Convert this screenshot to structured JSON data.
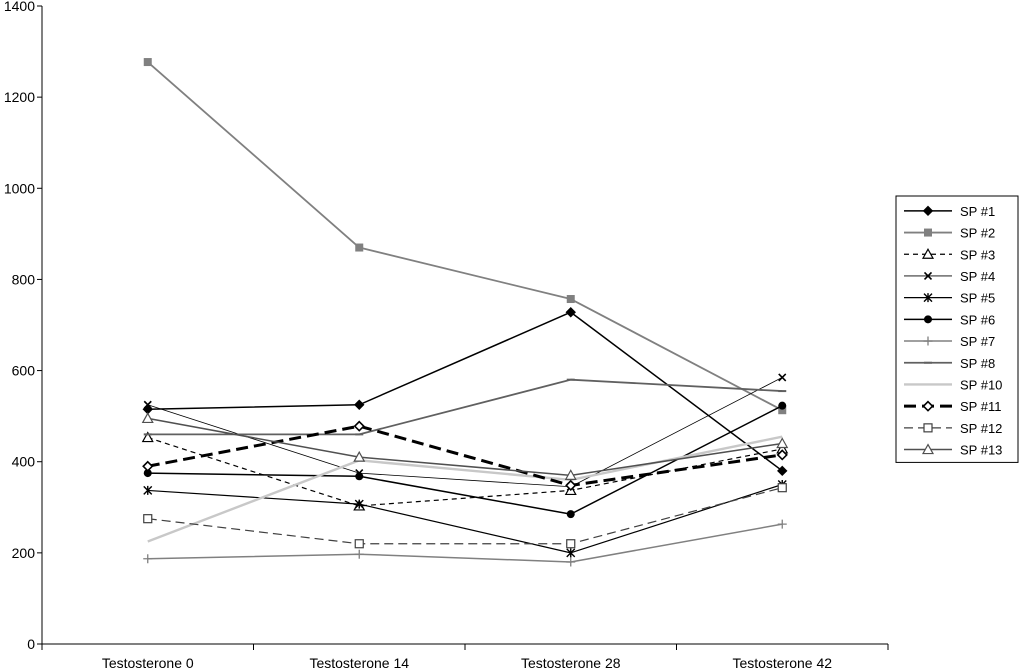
{
  "chart_data": {
    "type": "line",
    "title": "",
    "xlabel": "",
    "ylabel": "",
    "categories": [
      "Testosterone 0",
      "Testosterone 14",
      "Testosterone 28",
      "Testosterone 42"
    ],
    "ylim": [
      0,
      1400
    ],
    "yticks": [
      0,
      200,
      400,
      600,
      800,
      1000,
      1200,
      1400
    ],
    "grid": false,
    "legend_position": "right",
    "series": [
      {
        "name": "SP #1",
        "values": [
          515,
          525,
          728,
          380
        ],
        "color": "#000000",
        "stroke_width": 1.5,
        "dash": "",
        "marker": "diamond-filled"
      },
      {
        "name": "SP #2",
        "values": [
          1277,
          870,
          757,
          513
        ],
        "color": "#808080",
        "stroke_width": 1.8,
        "dash": "",
        "marker": "square-filled"
      },
      {
        "name": "SP #3",
        "values": [
          453,
          303,
          337,
          428
        ],
        "color": "#000000",
        "stroke_width": 1.2,
        "dash": "5,4",
        "marker": "triangle-open"
      },
      {
        "name": "SP #4",
        "values": [
          525,
          375,
          345,
          585
        ],
        "color": "#000000",
        "stroke_width": 0.8,
        "dash": "",
        "marker": "x"
      },
      {
        "name": "SP #5",
        "values": [
          337,
          307,
          200,
          350
        ],
        "color": "#000000",
        "stroke_width": 1.2,
        "dash": "",
        "marker": "asterisk"
      },
      {
        "name": "SP #6",
        "values": [
          375,
          368,
          285,
          523
        ],
        "color": "#000000",
        "stroke_width": 1.5,
        "dash": "",
        "marker": "circle-filled"
      },
      {
        "name": "SP #7",
        "values": [
          187,
          197,
          180,
          263
        ],
        "color": "#808080",
        "stroke_width": 1.5,
        "dash": "",
        "marker": "plus"
      },
      {
        "name": "SP #8",
        "values": [
          460,
          460,
          580,
          555
        ],
        "color": "#606060",
        "stroke_width": 1.8,
        "dash": "",
        "marker": "dash"
      },
      {
        "name": "SP #10",
        "values": [
          225,
          403,
          360,
          455
        ],
        "color": "#c8c8c8",
        "stroke_width": 2.4,
        "dash": "",
        "marker": "none"
      },
      {
        "name": "SP #11",
        "values": [
          390,
          478,
          348,
          415
        ],
        "color": "#000000",
        "stroke_width": 3.0,
        "dash": "12,6",
        "marker": "diamond-open"
      },
      {
        "name": "SP #12",
        "values": [
          275,
          220,
          220,
          343
        ],
        "color": "#404040",
        "stroke_width": 1.2,
        "dash": "9,5",
        "marker": "square-open"
      },
      {
        "name": "SP #13",
        "values": [
          495,
          410,
          370,
          440
        ],
        "color": "#505050",
        "stroke_width": 1.5,
        "dash": "",
        "marker": "triangle-open"
      }
    ]
  }
}
